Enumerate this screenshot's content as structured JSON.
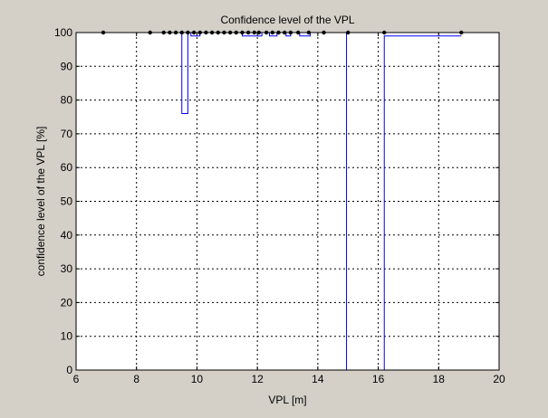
{
  "chart_data": {
    "type": "line",
    "title": "Confidence level of the VPL",
    "xlabel": "VPL [m]",
    "ylabel": "confidence level of the VPL [%]",
    "xlim": [
      6,
      20
    ],
    "ylim": [
      0,
      100
    ],
    "xticks": [
      6,
      8,
      10,
      12,
      14,
      16,
      18,
      20
    ],
    "yticks": [
      0,
      10,
      20,
      30,
      40,
      50,
      60,
      70,
      80,
      90,
      100
    ],
    "grid": true,
    "colors": {
      "line": "#0000ff",
      "markers": "#000000",
      "background": "#d4d0c8",
      "plot": "#ffffff"
    },
    "series": [
      {
        "style": "step",
        "x": [
          6.9,
          9.5,
          9.5,
          9.7,
          9.7,
          9.8,
          9.8,
          10.1,
          10.1,
          11.5,
          11.5,
          12.15,
          12.15,
          12.4,
          12.4,
          12.65,
          12.65,
          12.95,
          12.95,
          13.1,
          13.1,
          13.4,
          13.4,
          13.75,
          13.75,
          14.95,
          14.95,
          16.2,
          16.2,
          18.75
        ],
        "y": [
          100,
          100,
          76,
          76,
          100,
          100,
          99,
          99,
          100,
          100,
          99,
          99,
          100,
          100,
          99,
          99,
          100,
          100,
          99,
          99,
          100,
          100,
          99,
          99,
          100,
          100,
          0,
          0,
          99,
          99
        ]
      },
      {
        "style": "markers",
        "x": [
          6.9,
          8.45,
          8.9,
          9.1,
          9.3,
          9.5,
          9.7,
          9.9,
          10.1,
          10.3,
          10.5,
          10.7,
          10.9,
          11.1,
          11.3,
          11.5,
          11.7,
          11.9,
          12.05,
          12.3,
          12.5,
          12.7,
          12.9,
          13.1,
          13.35,
          13.7,
          14.2,
          15.0,
          16.2,
          18.75
        ],
        "y": [
          100,
          100,
          100,
          100,
          100,
          100,
          100,
          100,
          100,
          100,
          100,
          100,
          100,
          100,
          100,
          100,
          100,
          100,
          100,
          100,
          100,
          100,
          100,
          100,
          100,
          100,
          100,
          100,
          100,
          100
        ]
      }
    ]
  }
}
